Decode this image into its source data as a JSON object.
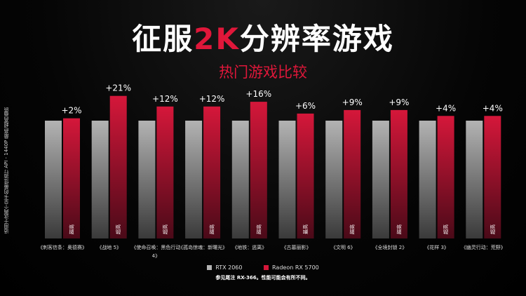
{
  "slide": {
    "title_part1": "征服",
    "title_highlight": "2K",
    "title_part2": "分辨率游戏",
    "subtitle": "热门游戏比较",
    "footnote": "参见尾注 RX-366。性能可能会有所不同。"
  },
  "chart_data": {
    "type": "bar",
    "title": "热门游戏比较",
    "ylabel": "适用于这两个显卡的最佳运行 API - 1440P 最高/超高画质",
    "categories": [
      "《刺客信条：奥德赛》",
      "《战地 5》",
      "《使命召唤：黑色行动 4》",
      "《孤岛惊魂：新曙光》",
      "《地铁：逃离》",
      "《古墓丽影》",
      "《文明 6》",
      "《全境封锁 2》",
      "《花样 3》",
      "《幽灵行动：荒野》"
    ],
    "series": [
      {
        "name": "RTX 2060",
        "values": [
          100,
          100,
          100,
          100,
          100,
          100,
          100,
          100,
          100,
          100
        ],
        "color": "#b3b3b3"
      },
      {
        "name": "Radeon RX 5700",
        "values": [
          102,
          121,
          112,
          112,
          116,
          106,
          109,
          109,
          104,
          104
        ],
        "color": "#d5173a"
      }
    ],
    "data_labels": [
      "+2%",
      "+21%",
      "+12%",
      "+12%",
      "+16%",
      "+6%",
      "+9%",
      "+9%",
      "+4%",
      "+4%"
    ],
    "bar_labels": [
      "超高",
      "超高",
      "超高",
      "超高",
      "超高",
      "最高",
      "超高",
      "超高",
      "超高",
      "超高"
    ],
    "ylim": [
      0,
      125
    ],
    "grid": false,
    "legend_position": "bottom"
  }
}
